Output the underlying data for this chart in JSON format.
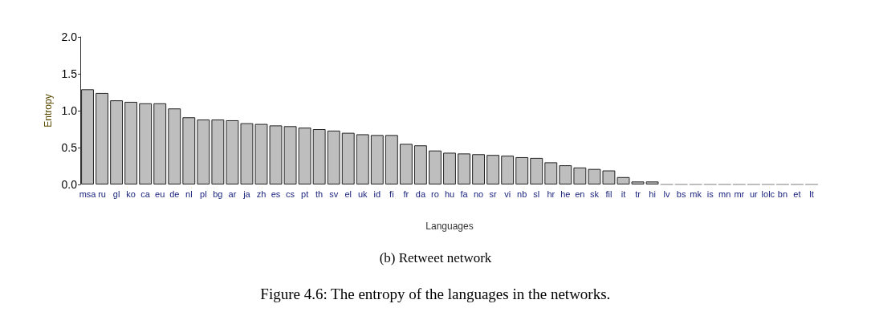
{
  "chart_data": {
    "type": "bar",
    "title": "(b) Retweet network",
    "xlabel": "Languages",
    "ylabel": "Entropy",
    "annotations": [
      "Figure 4.6: The entropy of the languages in the networks."
    ],
    "categories": [
      "msa",
      "ru",
      "gl",
      "ko",
      "ca",
      "eu",
      "de",
      "nl",
      "pl",
      "bg",
      "ar",
      "ja",
      "zh",
      "es",
      "cs",
      "pt",
      "th",
      "sv",
      "el",
      "uk",
      "id",
      "fi",
      "fr",
      "da",
      "ro",
      "hu",
      "fa",
      "no",
      "sr",
      "vi",
      "nb",
      "sl",
      "hr",
      "he",
      "en",
      "sk",
      "fil",
      "it",
      "tr",
      "hi",
      "lv",
      "bs",
      "mk",
      "is",
      "mn",
      "mr",
      "ur",
      "lolc",
      "bn",
      "et",
      "lt"
    ],
    "values": [
      1.29,
      1.24,
      1.14,
      1.12,
      1.1,
      1.1,
      1.03,
      0.91,
      0.88,
      0.88,
      0.87,
      0.83,
      0.82,
      0.8,
      0.79,
      0.77,
      0.75,
      0.73,
      0.7,
      0.68,
      0.67,
      0.67,
      0.55,
      0.53,
      0.46,
      0.43,
      0.42,
      0.41,
      0.4,
      0.39,
      0.37,
      0.36,
      0.3,
      0.26,
      0.23,
      0.21,
      0.19,
      0.1,
      0.04,
      0.04,
      0,
      0,
      0,
      0,
      0,
      0,
      0,
      0,
      0,
      0,
      0
    ],
    "color": "#bebebe",
    "ylim": [
      0,
      2
    ],
    "yticks": [
      {
        "value": 0,
        "label": "0.0"
      },
      0.5,
      {
        "value": 1,
        "label": "1.0"
      },
      1.5,
      {
        "value": 2,
        "label": "2.0"
      }
    ],
    "grid": false
  }
}
